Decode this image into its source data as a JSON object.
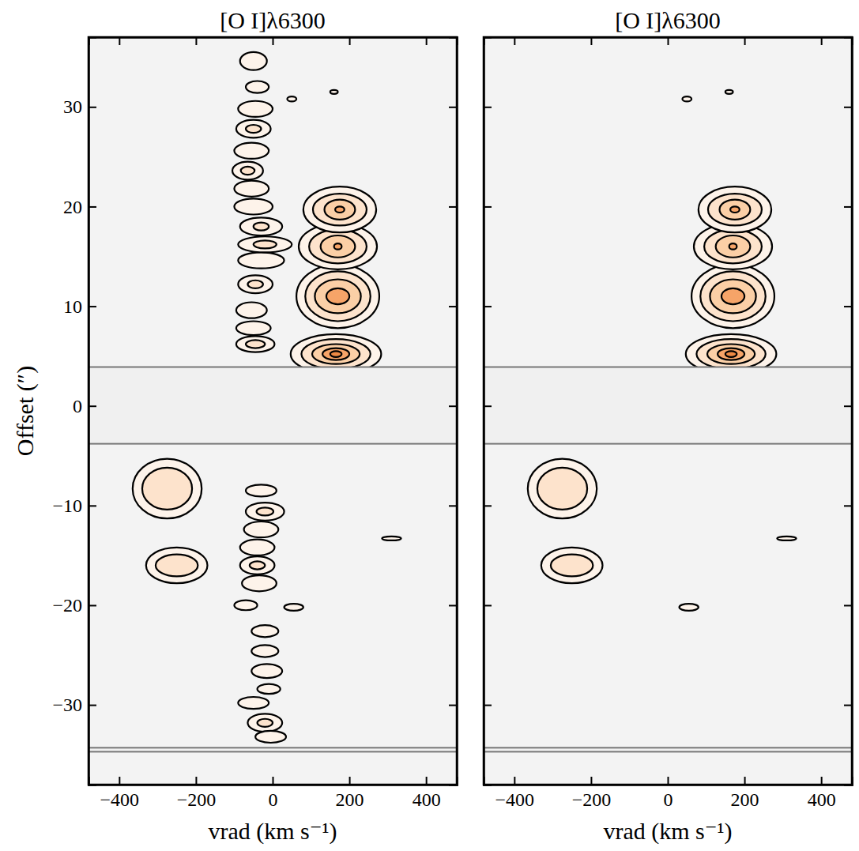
{
  "chart_data": [
    {
      "type": "contour",
      "title": "[O I]λ6300",
      "xlabel": "vrad (km s⁻¹)",
      "ylabel": "Offset (″)",
      "xlim": [
        -480,
        480
      ],
      "ylim": [
        -38,
        37
      ],
      "xticks": [
        -400,
        -200,
        0,
        200,
        400
      ],
      "yticks": [
        -30,
        -20,
        -10,
        0,
        10,
        20,
        30
      ],
      "colors": [
        "#fdf3ea",
        "#fde3cc",
        "#fbcfa6",
        "#f6a468",
        "#ee8a44"
      ],
      "masks": [
        [
          -3.8,
          3.9
        ],
        [
          -34.7,
          -34.3
        ]
      ],
      "knots": [
        {
          "v": 165,
          "offset": 5.2,
          "contours": [
            [
              118,
              2.0
            ],
            [
              90,
              1.5
            ],
            [
              62,
              1.0
            ],
            [
              35,
              0.6
            ],
            [
              15,
              0.3
            ]
          ]
        },
        {
          "v": 170,
          "offset": 11.0,
          "contours": [
            [
              108,
              3.2
            ],
            [
              85,
              2.5
            ],
            [
              60,
              1.7
            ],
            [
              30,
              0.8
            ]
          ]
        },
        {
          "v": 170,
          "offset": 16.0,
          "contours": [
            [
              102,
              2.3
            ],
            [
              75,
              1.7
            ],
            [
              45,
              1.1
            ],
            [
              10,
              0.3
            ]
          ]
        },
        {
          "v": 175,
          "offset": 19.7,
          "contours": [
            [
              95,
              2.3
            ],
            [
              70,
              1.6
            ],
            [
              40,
              1.0
            ],
            [
              12,
              0.3
            ]
          ]
        },
        {
          "v": -275,
          "offset": -8.3,
          "contours": [
            [
              90,
              3.0
            ],
            [
              65,
              2.1
            ]
          ]
        },
        {
          "v": -250,
          "offset": -16.0,
          "contours": [
            [
              80,
              1.8
            ],
            [
              55,
              1.1
            ]
          ]
        },
        {
          "v": 50,
          "offset": 30.8,
          "contours": [
            [
              12,
              0.25
            ]
          ]
        },
        {
          "v": 160,
          "offset": 31.5,
          "contours": [
            [
              10,
              0.2
            ]
          ]
        },
        {
          "v": 55,
          "offset": -20.2,
          "contours": [
            [
              25,
              0.35
            ]
          ]
        },
        {
          "v": 310,
          "offset": -13.3,
          "contours": [
            [
              25,
              0.2
            ]
          ]
        },
        {
          "v": -45,
          "offset": 6.2,
          "contours": [
            [
              50,
              0.8
            ],
            [
              25,
              0.4
            ]
          ]
        },
        {
          "v": -50,
          "offset": 7.8,
          "contours": [
            [
              45,
              0.7
            ]
          ]
        },
        {
          "v": -55,
          "offset": 9.6,
          "contours": [
            [
              40,
              0.8
            ]
          ]
        },
        {
          "v": -45,
          "offset": 12.2,
          "contours": [
            [
              45,
              0.9
            ],
            [
              20,
              0.4
            ]
          ]
        },
        {
          "v": -30,
          "offset": 14.6,
          "contours": [
            [
              60,
              0.8
            ]
          ]
        },
        {
          "v": -20,
          "offset": 16.2,
          "contours": [
            [
              70,
              0.8
            ],
            [
              30,
              0.4
            ]
          ]
        },
        {
          "v": -30,
          "offset": 18.0,
          "contours": [
            [
              55,
              0.9
            ],
            [
              20,
              0.4
            ]
          ]
        },
        {
          "v": -50,
          "offset": 20.0,
          "contours": [
            [
              50,
              0.8
            ]
          ]
        },
        {
          "v": -55,
          "offset": 21.8,
          "contours": [
            [
              45,
              0.8
            ]
          ]
        },
        {
          "v": -65,
          "offset": 23.6,
          "contours": [
            [
              40,
              0.9
            ],
            [
              18,
              0.4
            ]
          ]
        },
        {
          "v": -55,
          "offset": 25.6,
          "contours": [
            [
              45,
              0.8
            ]
          ]
        },
        {
          "v": -50,
          "offset": 27.8,
          "contours": [
            [
              45,
              0.9
            ],
            [
              20,
              0.4
            ]
          ]
        },
        {
          "v": -45,
          "offset": 29.8,
          "contours": [
            [
              45,
              0.8
            ]
          ]
        },
        {
          "v": -40,
          "offset": 32.0,
          "contours": [
            [
              30,
              0.6
            ]
          ]
        },
        {
          "v": -50,
          "offset": 34.6,
          "contours": [
            [
              35,
              0.9
            ]
          ]
        },
        {
          "v": -30,
          "offset": -8.5,
          "contours": [
            [
              40,
              0.6
            ]
          ]
        },
        {
          "v": -20,
          "offset": -10.6,
          "contours": [
            [
              50,
              0.9
            ],
            [
              22,
              0.4
            ]
          ]
        },
        {
          "v": -30,
          "offset": -12.4,
          "contours": [
            [
              45,
              0.8
            ]
          ]
        },
        {
          "v": -40,
          "offset": -14.2,
          "contours": [
            [
              45,
              0.8
            ]
          ]
        },
        {
          "v": -40,
          "offset": -16.0,
          "contours": [
            [
              45,
              0.9
            ],
            [
              20,
              0.4
            ]
          ]
        },
        {
          "v": -35,
          "offset": -17.8,
          "contours": [
            [
              45,
              0.8
            ]
          ]
        },
        {
          "v": -70,
          "offset": -20.0,
          "contours": [
            [
              30,
              0.5
            ]
          ]
        },
        {
          "v": -20,
          "offset": -22.6,
          "contours": [
            [
              35,
              0.6
            ]
          ]
        },
        {
          "v": -20,
          "offset": -24.6,
          "contours": [
            [
              35,
              0.6
            ]
          ]
        },
        {
          "v": -15,
          "offset": -26.6,
          "contours": [
            [
              40,
              0.7
            ]
          ]
        },
        {
          "v": -10,
          "offset": -28.4,
          "contours": [
            [
              30,
              0.5
            ]
          ]
        },
        {
          "v": -50,
          "offset": -29.8,
          "contours": [
            [
              40,
              0.6
            ]
          ]
        },
        {
          "v": -20,
          "offset": -31.8,
          "contours": [
            [
              45,
              0.9
            ],
            [
              20,
              0.4
            ]
          ]
        },
        {
          "v": -5,
          "offset": -33.2,
          "contours": [
            [
              40,
              0.6
            ]
          ]
        }
      ]
    },
    {
      "type": "contour",
      "title": "[O I]λ6300",
      "xlabel": "vrad (km s⁻¹)",
      "tick_labels": "x",
      "xlim": [
        -480,
        480
      ],
      "ylim": [
        -38,
        37
      ],
      "xticks": [
        -400,
        -200,
        0,
        200,
        400
      ],
      "yticks": [
        -30,
        -20,
        -10,
        0,
        10,
        20,
        30
      ],
      "colors": [
        "#fdf3ea",
        "#fde3cc",
        "#fbcfa6",
        "#f6a468",
        "#ee8a44"
      ],
      "masks": [
        [
          -3.8,
          3.9
        ],
        [
          -34.7,
          -34.3
        ]
      ],
      "knots": [
        {
          "v": 165,
          "offset": 5.2,
          "contours": [
            [
              118,
              2.0
            ],
            [
              90,
              1.5
            ],
            [
              62,
              1.0
            ],
            [
              35,
              0.6
            ],
            [
              15,
              0.3
            ]
          ]
        },
        {
          "v": 170,
          "offset": 11.0,
          "contours": [
            [
              108,
              3.2
            ],
            [
              85,
              2.5
            ],
            [
              60,
              1.7
            ],
            [
              30,
              0.8
            ]
          ]
        },
        {
          "v": 170,
          "offset": 16.0,
          "contours": [
            [
              102,
              2.3
            ],
            [
              75,
              1.7
            ],
            [
              45,
              1.1
            ],
            [
              10,
              0.3
            ]
          ]
        },
        {
          "v": 175,
          "offset": 19.7,
          "contours": [
            [
              95,
              2.3
            ],
            [
              70,
              1.6
            ],
            [
              40,
              1.0
            ],
            [
              12,
              0.3
            ]
          ]
        },
        {
          "v": -275,
          "offset": -8.3,
          "contours": [
            [
              90,
              3.0
            ],
            [
              65,
              2.1
            ]
          ]
        },
        {
          "v": -250,
          "offset": -16.0,
          "contours": [
            [
              80,
              1.8
            ],
            [
              55,
              1.1
            ]
          ]
        },
        {
          "v": 50,
          "offset": 30.8,
          "contours": [
            [
              12,
              0.25
            ]
          ]
        },
        {
          "v": 160,
          "offset": 31.5,
          "contours": [
            [
              10,
              0.2
            ]
          ]
        },
        {
          "v": 55,
          "offset": -20.2,
          "contours": [
            [
              25,
              0.35
            ]
          ]
        },
        {
          "v": 310,
          "offset": -13.3,
          "contours": [
            [
              25,
              0.2
            ]
          ]
        }
      ]
    }
  ]
}
